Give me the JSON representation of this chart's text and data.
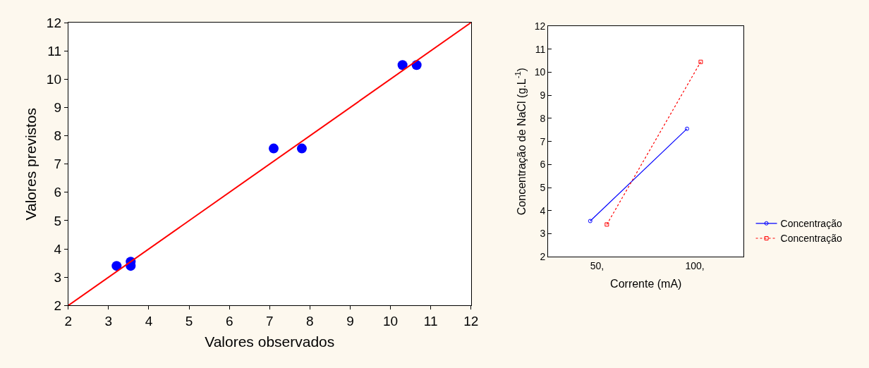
{
  "chart_data": [
    {
      "type": "scatter",
      "xlabel": "Valores observados",
      "ylabel": "Valores previstos",
      "xlim": [
        2,
        12
      ],
      "ylim": [
        2,
        12
      ],
      "xticks": [
        2,
        3,
        4,
        5,
        6,
        7,
        8,
        9,
        10,
        11,
        12
      ],
      "yticks": [
        2,
        3,
        4,
        5,
        6,
        7,
        8,
        9,
        10,
        11,
        12
      ],
      "legend": false,
      "marker": "circle",
      "series": [
        {
          "color": "#0000ff",
          "x": [
            3.2,
            3.55,
            3.55,
            7.1,
            7.8,
            10.3,
            10.65
          ],
          "values": [
            3.4,
            3.55,
            3.4,
            7.55,
            7.55,
            10.5,
            10.5
          ]
        },
        {
          "type": "line",
          "marker": "none",
          "color": "#ff0000",
          "x": [
            2,
            12
          ],
          "values": [
            2,
            12
          ]
        }
      ]
    },
    {
      "type": "line",
      "xlabel": "Corrente (mA)",
      "ylabel": "Concentração de NaCl (g.L$^{-1}$)",
      "xlim": [
        25,
        125
      ],
      "ylim": [
        2,
        12
      ],
      "xticks": [
        {
          "value": 50,
          "label": "50,"
        },
        {
          "value": 100,
          "label": "100,"
        }
      ],
      "yticks": [
        2,
        3,
        4,
        5,
        6,
        7,
        8,
        9,
        10,
        11,
        12
      ],
      "legend": "right",
      "series": [
        {
          "name": "Concentração",
          "color": "#0000ff",
          "marker": "circle",
          "line_style": "solid",
          "x": [
            46.5,
            96
          ],
          "values": [
            3.55,
            7.55
          ]
        },
        {
          "name": "Concentração",
          "color": "#ff0000",
          "marker": "square",
          "line_style": "dotted",
          "x": [
            55,
            103
          ],
          "values": [
            3.4,
            10.45
          ]
        }
      ]
    }
  ]
}
